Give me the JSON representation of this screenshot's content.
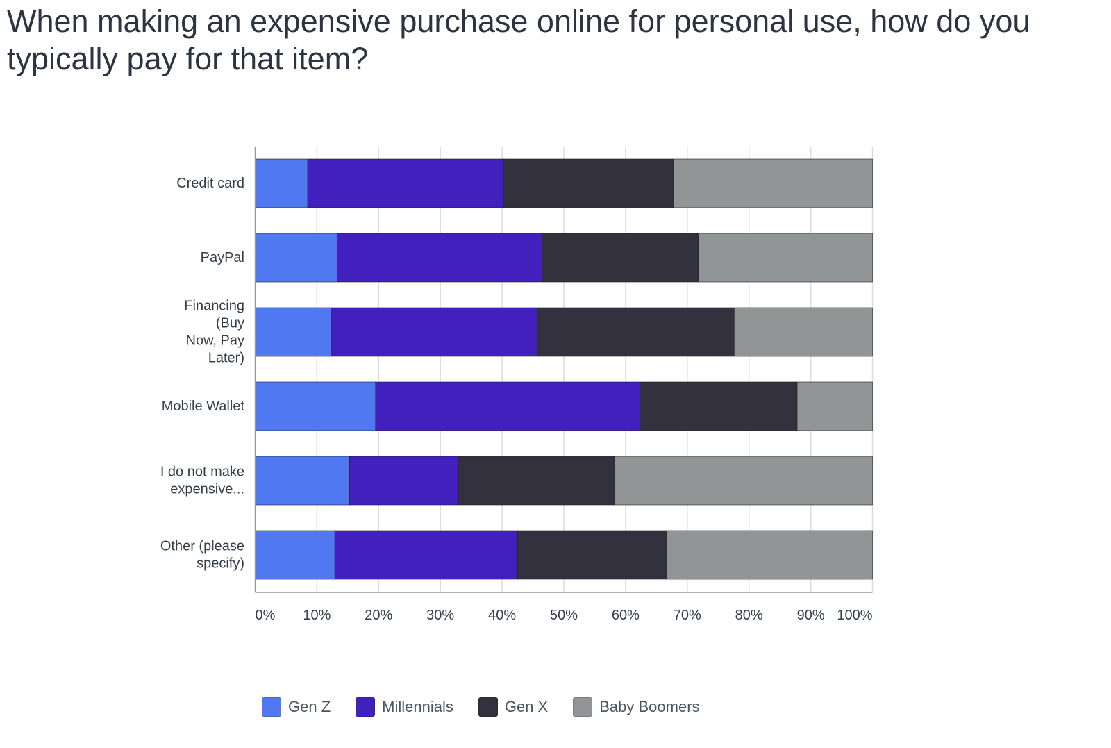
{
  "title": "When making an expensive purchase online for personal use, how do you typically pay for that item?",
  "colors": {
    "gen_z": "#4f78f1",
    "millennials": "#4220bd",
    "gen_x": "#33313d",
    "baby_boomers": "#929595",
    "grid": "#dcdcdc",
    "axis": "#9a9a9a"
  },
  "chart_data": {
    "type": "bar",
    "orientation": "horizontal",
    "stacked": "100%",
    "categories": [
      "Credit card",
      "PayPal",
      "Financing (Buy Now, Pay Later)",
      "Mobile Wallet",
      "I do not make expensive...",
      "Other (please specify)"
    ],
    "category_display": [
      [
        "Credit card"
      ],
      [
        "PayPal"
      ],
      [
        "Financing",
        "(Buy",
        "Now, Pay",
        "Later)"
      ],
      [
        "Mobile Wallet"
      ],
      [
        "I do not make",
        "expensive..."
      ],
      [
        "Other (please",
        "specify)"
      ]
    ],
    "series": [
      {
        "name": "Gen Z",
        "color_key": "gen_z",
        "values": [
          8.5,
          13.3,
          12.3,
          19.5,
          15.3,
          12.9
        ]
      },
      {
        "name": "Millennials",
        "color_key": "millennials",
        "values": [
          31.8,
          33.2,
          33.4,
          42.8,
          17.6,
          29.6
        ]
      },
      {
        "name": "Gen X",
        "color_key": "gen_x",
        "values": [
          27.5,
          25.3,
          31.9,
          25.5,
          25.3,
          24.1
        ]
      },
      {
        "name": "Baby Boomers",
        "color_key": "baby_boomers",
        "values": [
          32.2,
          28.2,
          22.4,
          12.2,
          41.8,
          33.4
        ]
      }
    ],
    "xlim": [
      0,
      100
    ],
    "xticks": [
      "0%",
      "10%",
      "20%",
      "30%",
      "40%",
      "50%",
      "60%",
      "70%",
      "80%",
      "90%",
      "100%"
    ],
    "grid": true,
    "legend_position": "bottom-left"
  }
}
